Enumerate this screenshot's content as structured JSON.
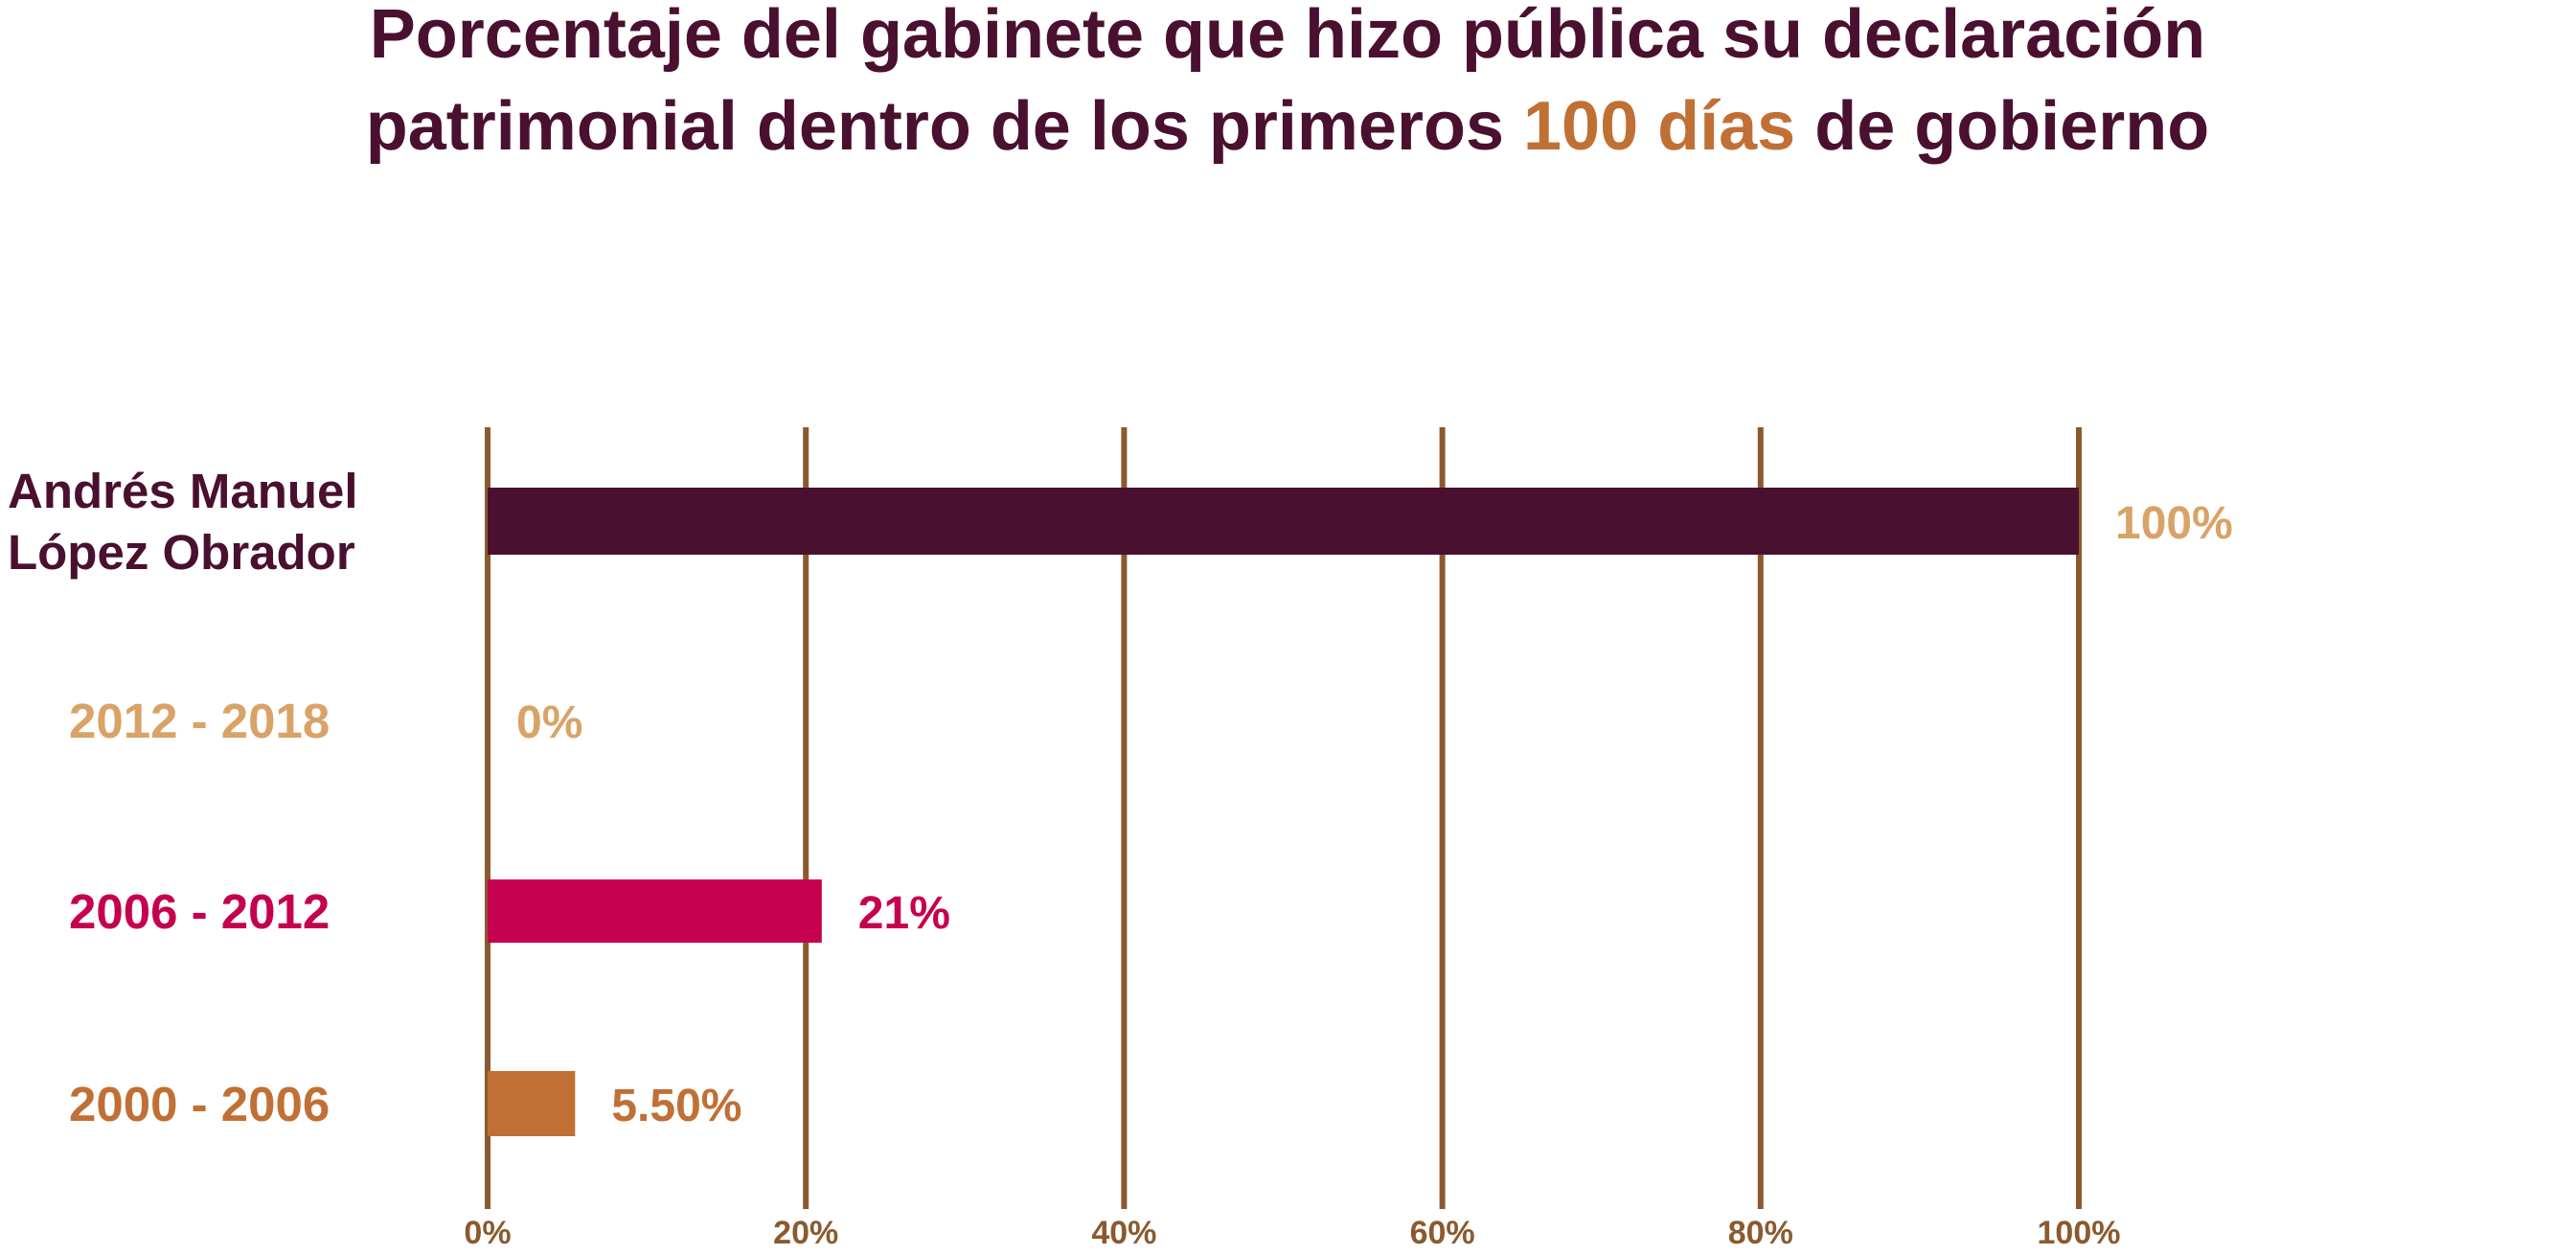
{
  "chart_data": {
    "type": "bar",
    "orientation": "horizontal",
    "title_line1": "Porcentaje del gabinete que hizo pública su declaración",
    "title_line2_before": "patrimonial dentro de los primeros ",
    "title_line2_highlight": "100 días",
    "title_line2_after": " de gobierno",
    "categories": [
      [
        "Andrés Manuel",
        "López Obrador"
      ],
      [
        "2012 - 2018"
      ],
      [
        "2006 - 2012"
      ],
      [
        "2000 - 2006"
      ]
    ],
    "values": [
      100,
      0,
      21,
      5.5
    ],
    "value_labels": [
      "100%",
      "0%",
      "21%",
      "5.50%"
    ],
    "xlim": [
      0,
      100
    ],
    "x_ticks": [
      0,
      20,
      40,
      60,
      80,
      100
    ],
    "x_tick_labels": [
      "0%",
      "20%",
      "40%",
      "60%",
      "80%",
      "100%"
    ],
    "grid": "vertical",
    "legend": "none",
    "colors": {
      "title": "#4a1030",
      "title_highlight": "#c07035",
      "grid": "#8a5a2e",
      "tick_label": "#8a5a2e",
      "bars": [
        "#4a1030",
        "#d9a367",
        "#c5004e",
        "#c07035"
      ],
      "category_labels": [
        "#4a1030",
        "#d9a367",
        "#c5004e",
        "#c07035"
      ],
      "value_labels": [
        "#d9a367",
        "#d9a367",
        "#c5004e",
        "#c07035"
      ]
    }
  }
}
